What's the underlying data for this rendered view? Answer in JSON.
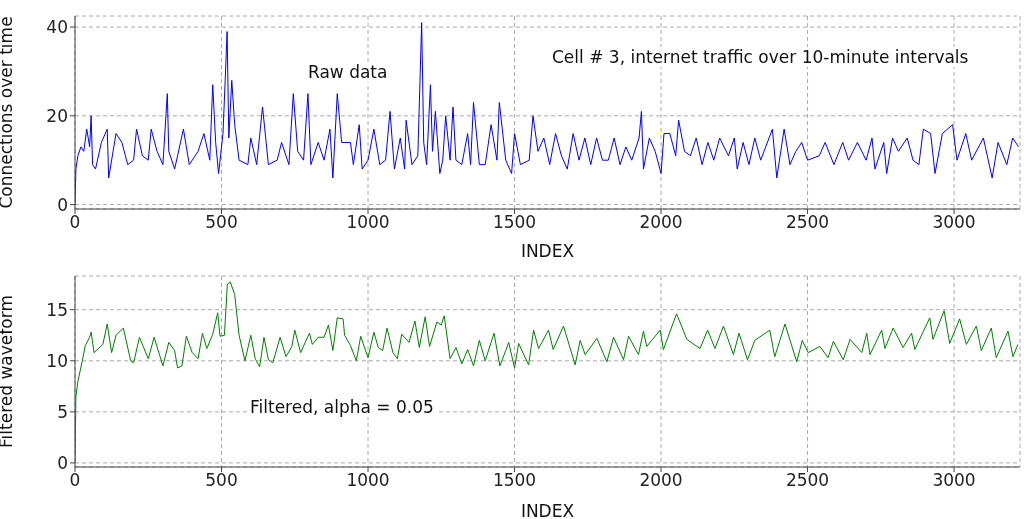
{
  "chart_data": [
    {
      "type": "line",
      "xlabel": "INDEX",
      "ylabel": "Connections over time",
      "annotations": [
        "Raw data",
        "Cell # 3, internet traffic over 10-minute intervals"
      ],
      "color": "#0000ff",
      "xlim": [
        0,
        3225
      ],
      "ylim": [
        -1,
        42.5
      ],
      "xticks": [
        0,
        500,
        1000,
        1500,
        2000,
        2500,
        3000
      ],
      "yticks": [
        0,
        20,
        40
      ],
      "grid": true,
      "x": [
        0,
        3,
        10,
        20,
        30,
        40,
        50,
        55,
        60,
        70,
        90,
        110,
        115,
        130,
        140,
        160,
        180,
        200,
        210,
        230,
        250,
        260,
        280,
        300,
        315,
        320,
        340,
        370,
        390,
        420,
        440,
        460,
        470,
        480,
        490,
        505,
        515,
        519,
        525,
        535,
        545,
        560,
        590,
        600,
        620,
        640,
        660,
        690,
        705,
        730,
        745,
        760,
        780,
        795,
        805,
        830,
        850,
        870,
        880,
        895,
        910,
        940,
        950,
        970,
        980,
        1000,
        1020,
        1040,
        1060,
        1075,
        1090,
        1110,
        1125,
        1130,
        1150,
        1170,
        1183,
        1190,
        1200,
        1213,
        1220,
        1230,
        1245,
        1255,
        1265,
        1280,
        1290,
        1300,
        1320,
        1340,
        1350,
        1360,
        1380,
        1400,
        1420,
        1440,
        1448,
        1470,
        1490,
        1500,
        1520,
        1550,
        1563,
        1580,
        1600,
        1620,
        1640,
        1660,
        1680,
        1700,
        1720,
        1740,
        1760,
        1780,
        1800,
        1820,
        1840,
        1860,
        1880,
        1900,
        1925,
        1933,
        1940,
        1960,
        1980,
        2000,
        2010,
        2030,
        2050,
        2060,
        2080,
        2100,
        2120,
        2140,
        2160,
        2180,
        2200,
        2230,
        2250,
        2260,
        2280,
        2300,
        2320,
        2340,
        2380,
        2395,
        2420,
        2440,
        2460,
        2480,
        2500,
        2540,
        2560,
        2590,
        2620,
        2640,
        2670,
        2700,
        2720,
        2730,
        2760,
        2770,
        2790,
        2810,
        2840,
        2860,
        2880,
        2895,
        2920,
        2935,
        2960,
        2995,
        3010,
        3040,
        3060,
        3100,
        3130,
        3150,
        3180,
        3200,
        3220
      ],
      "values": [
        0,
        8,
        11,
        13,
        12,
        17,
        13,
        20,
        9,
        8,
        14,
        17,
        6,
        12,
        16,
        14,
        9,
        10,
        17,
        11,
        10,
        17,
        12,
        9,
        25,
        12,
        8,
        17,
        9,
        12,
        16,
        10,
        27,
        14,
        7,
        16,
        32,
        39,
        15,
        28,
        18,
        10,
        9,
        15,
        9,
        22,
        9,
        10,
        14,
        9,
        25,
        12,
        10,
        25,
        9,
        14,
        10,
        17,
        6,
        25,
        14,
        14,
        9,
        18,
        8,
        10,
        17,
        9,
        10,
        21,
        8,
        15,
        8,
        19,
        9,
        11,
        41,
        14,
        9,
        27,
        12,
        21,
        7,
        10,
        20,
        10,
        22,
        10,
        9,
        16,
        9,
        23,
        9,
        9,
        18,
        10,
        23,
        10,
        7,
        16,
        9,
        10,
        20,
        12,
        15,
        9,
        16,
        11,
        8,
        16,
        10,
        15,
        9,
        15,
        10,
        10,
        15,
        9,
        13,
        10,
        15,
        21,
        8,
        15,
        12,
        7,
        16,
        16,
        11,
        19,
        12,
        11,
        15,
        9,
        14,
        10,
        15,
        11,
        15,
        8,
        14,
        9,
        15,
        10,
        17,
        6,
        17,
        9,
        12,
        14,
        10,
        11,
        14,
        9,
        14,
        10,
        14,
        10,
        15,
        8,
        14,
        7,
        15,
        12,
        15,
        10,
        9,
        17,
        16,
        7,
        16,
        18,
        10,
        16,
        10,
        15,
        6,
        14,
        9,
        15,
        13
      ]
    },
    {
      "type": "line",
      "xlabel": "INDEX",
      "ylabel": "Filtered waveform",
      "annotations": [
        "Filtered, alpha = 0.05"
      ],
      "color": "#008000",
      "xlim": [
        0,
        3225
      ],
      "ylim": [
        -0.4,
        18.3
      ],
      "xticks": [
        0,
        500,
        1000,
        1500,
        2000,
        2500,
        3000
      ],
      "yticks": [
        0,
        5,
        10,
        15
      ],
      "grid": true,
      "x": [
        0,
        3,
        10,
        25,
        35,
        50,
        55,
        65,
        80,
        95,
        110,
        125,
        140,
        165,
        190,
        200,
        220,
        250,
        270,
        300,
        320,
        340,
        350,
        365,
        380,
        400,
        420,
        435,
        450,
        470,
        487,
        495,
        510,
        520,
        530,
        545,
        560,
        580,
        600,
        615,
        630,
        645,
        660,
        675,
        700,
        720,
        740,
        750,
        770,
        800,
        810,
        830,
        850,
        865,
        880,
        895,
        915,
        920,
        940,
        960,
        975,
        1000,
        1020,
        1035,
        1050,
        1065,
        1085,
        1100,
        1115,
        1140,
        1160,
        1175,
        1195,
        1210,
        1235,
        1250,
        1260,
        1280,
        1300,
        1320,
        1340,
        1360,
        1380,
        1400,
        1430,
        1450,
        1470,
        1480,
        1500,
        1514,
        1548,
        1565,
        1582,
        1616,
        1632,
        1667,
        1707,
        1724,
        1741,
        1781,
        1815,
        1838,
        1872,
        1889,
        1923,
        1940,
        1951,
        1997,
        2008,
        2053,
        2088,
        2133,
        2159,
        2184,
        2213,
        2247,
        2266,
        2295,
        2320,
        2371,
        2388,
        2423,
        2463,
        2482,
        2502,
        2542,
        2570,
        2588,
        2622,
        2645,
        2685,
        2702,
        2713,
        2753,
        2764,
        2792,
        2826,
        2855,
        2866,
        2917,
        2928,
        2966,
        2985,
        3019,
        3042,
        3076,
        3093,
        3127,
        3144,
        3184,
        3201,
        3218
      ],
      "values": [
        0,
        6.5,
        8,
        10,
        11.5,
        12.3,
        12.8,
        10.8,
        11.2,
        11.6,
        13.6,
        10.8,
        12.5,
        13.2,
        10,
        9.8,
        12.3,
        10.2,
        12.3,
        9.5,
        11.8,
        11,
        9.3,
        9.5,
        12.4,
        10.8,
        10.2,
        12.7,
        11.2,
        12.6,
        14.7,
        12.4,
        12.5,
        17.5,
        17.7,
        16.5,
        12.5,
        10,
        12.5,
        10.2,
        9.4,
        12.3,
        10.1,
        9.8,
        12.3,
        10.4,
        11.4,
        13,
        10.8,
        12.7,
        11.6,
        12.3,
        12.3,
        13.5,
        11,
        14.2,
        14.1,
        12.5,
        11.5,
        10,
        12.4,
        10.3,
        12.8,
        11.3,
        11,
        13.2,
        10.8,
        10.2,
        12.6,
        11.8,
        13.9,
        11.3,
        14.3,
        11.4,
        13.8,
        13.5,
        14.4,
        10.2,
        11.3,
        9.7,
        11.1,
        9.5,
        12,
        10,
        12.7,
        9.5,
        11,
        11.8,
        9.3,
        11.7,
        9.6,
        13,
        11.2,
        13,
        11.1,
        13.4,
        9.6,
        12,
        10.6,
        12.2,
        9.9,
        12.3,
        10.1,
        12.4,
        10.6,
        12.9,
        11.4,
        13,
        11.1,
        14.6,
        12.1,
        11.2,
        13,
        11.2,
        13.4,
        10.6,
        12.7,
        10.1,
        12,
        13,
        10.4,
        13.6,
        9.9,
        12,
        10.8,
        11.4,
        10.3,
        11.9,
        10.1,
        12.1,
        10.8,
        12.7,
        10.6,
        13,
        11.2,
        13.2,
        11.3,
        12.7,
        11.1,
        14.2,
        12.1,
        14.9,
        11.7,
        14.1,
        11.6,
        13.4,
        11,
        13.2,
        10.3,
        12.9,
        10.4,
        11.6
      ]
    }
  ]
}
